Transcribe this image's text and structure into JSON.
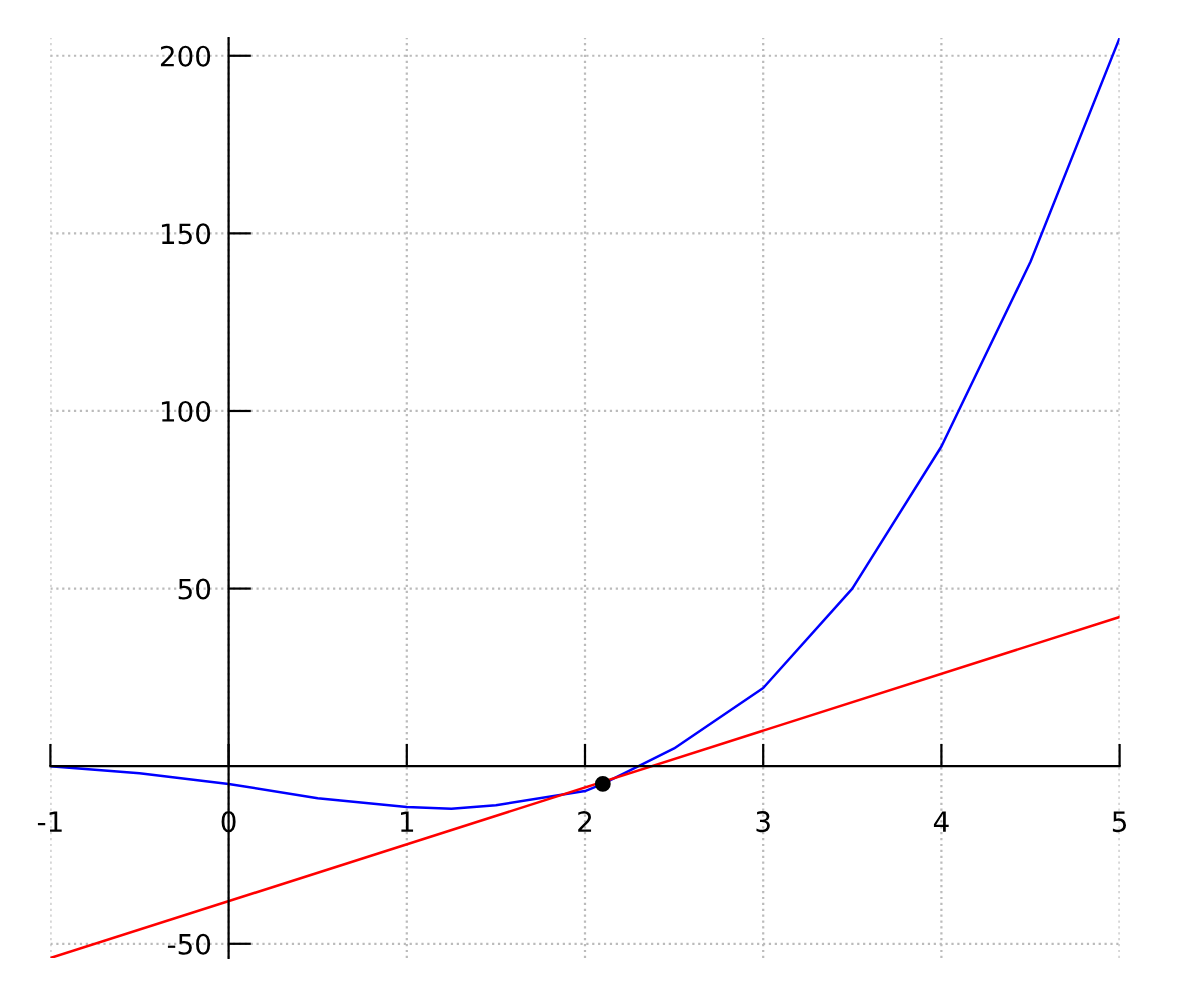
{
  "chart_data": {
    "type": "line",
    "series": [
      {
        "type": "line",
        "color": "#0000ff",
        "x": [
          -1,
          -0.5,
          0,
          0.5,
          1,
          1.25,
          1.5,
          2,
          2.1,
          2.5,
          3,
          3.5,
          4,
          4.5,
          5
        ],
        "values": [
          0,
          -2,
          -5,
          -9,
          -11.5,
          -12,
          -11,
          -7,
          -5,
          5,
          22,
          50,
          90,
          142,
          205
        ]
      },
      {
        "type": "line",
        "color": "#ff0000",
        "x": [
          -1,
          5
        ],
        "values": [
          -54,
          42
        ]
      },
      {
        "type": "scatter",
        "color": "#000000",
        "marker": "circle",
        "x": [
          2.1
        ],
        "values": [
          -5
        ]
      }
    ],
    "xlim": [
      -1,
      5
    ],
    "ylim": [
      -54,
      205
    ],
    "xticks": [
      -1,
      0,
      1,
      2,
      3,
      4,
      5
    ],
    "yticks": [
      -50,
      50,
      100,
      150,
      200
    ],
    "grid": true,
    "line_style": "solid"
  }
}
